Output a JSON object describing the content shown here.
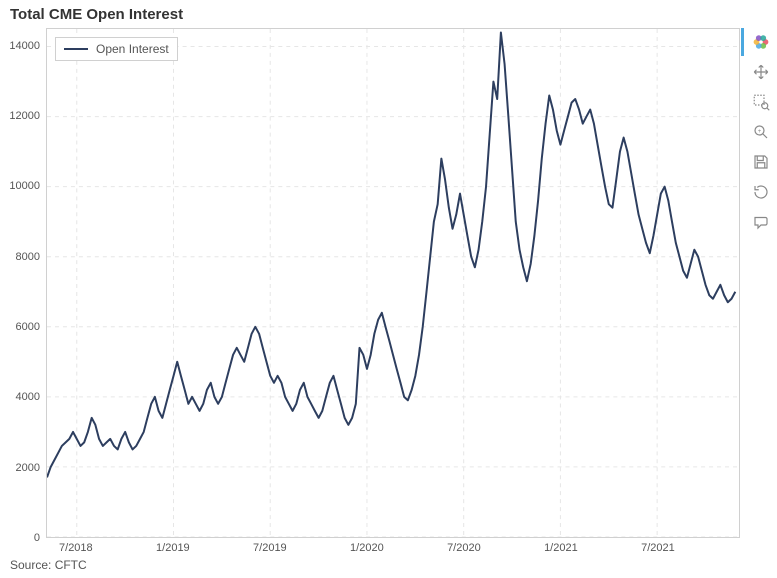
{
  "chart": {
    "type": "line",
    "title": "Total CME Open Interest",
    "source_label": "Source: CFTC",
    "legend_label": "Open Interest",
    "background_color": "#ffffff",
    "grid_color": "#e6e6e6",
    "border_color": "#d0d0d0",
    "line_color": "#2d3e5f",
    "line_width": 2,
    "title_fontsize": 15,
    "label_fontsize": 11,
    "ylim": [
      0,
      14500
    ],
    "ytick_step": 2000,
    "yticks": [
      0,
      2000,
      4000,
      6000,
      8000,
      10000,
      12000,
      14000
    ],
    "xlim": [
      0,
      186
    ],
    "xticks": [
      {
        "idx": 8,
        "label": "7/2018"
      },
      {
        "idx": 34,
        "label": "1/2019"
      },
      {
        "idx": 60,
        "label": "7/2019"
      },
      {
        "idx": 86,
        "label": "1/2020"
      },
      {
        "idx": 112,
        "label": "7/2020"
      },
      {
        "idx": 138,
        "label": "1/2021"
      },
      {
        "idx": 164,
        "label": "7/2021"
      }
    ],
    "values": [
      1700,
      2000,
      2200,
      2400,
      2600,
      2700,
      2800,
      3000,
      2800,
      2600,
      2700,
      3000,
      3400,
      3200,
      2800,
      2600,
      2700,
      2800,
      2600,
      2500,
      2800,
      3000,
      2700,
      2500,
      2600,
      2800,
      3000,
      3400,
      3800,
      4000,
      3600,
      3400,
      3800,
      4200,
      4600,
      5000,
      4600,
      4200,
      3800,
      4000,
      3800,
      3600,
      3800,
      4200,
      4400,
      4000,
      3800,
      4000,
      4400,
      4800,
      5200,
      5400,
      5200,
      5000,
      5400,
      5800,
      6000,
      5800,
      5400,
      5000,
      4600,
      4400,
      4600,
      4400,
      4000,
      3800,
      3600,
      3800,
      4200,
      4400,
      4000,
      3800,
      3600,
      3400,
      3600,
      4000,
      4400,
      4600,
      4200,
      3800,
      3400,
      3200,
      3400,
      3800,
      5400,
      5200,
      4800,
      5200,
      5800,
      6200,
      6400,
      6000,
      5600,
      5200,
      4800,
      4400,
      4000,
      3900,
      4200,
      4600,
      5200,
      6000,
      7000,
      8000,
      9000,
      9500,
      10800,
      10200,
      9400,
      8800,
      9200,
      9800,
      9200,
      8600,
      8000,
      7700,
      8200,
      9000,
      10000,
      11500,
      13000,
      12500,
      14400,
      13500,
      12000,
      10500,
      9000,
      8200,
      7700,
      7300,
      7800,
      8600,
      9600,
      10800,
      11800,
      12600,
      12200,
      11600,
      11200,
      11600,
      12000,
      12400,
      12500,
      12200,
      11800,
      12000,
      12200,
      11800,
      11200,
      10600,
      10000,
      9500,
      9400,
      10200,
      11000,
      11400,
      11000,
      10400,
      9800,
      9200,
      8800,
      8400,
      8100,
      8600,
      9200,
      9800,
      10000,
      9600,
      9000,
      8400,
      8000,
      7600,
      7400,
      7800,
      8200,
      8000,
      7600,
      7200,
      6900,
      6800,
      7000,
      7200,
      6900,
      6700,
      6800,
      7000
    ]
  },
  "toolbar": {
    "logo_colors": [
      "#e84d60",
      "#6bbd45",
      "#4aa8e0",
      "#f2b134",
      "#8250c4",
      "#26a69a"
    ],
    "active_color": "#4aa8e0",
    "icon_color": "#888888",
    "items": [
      {
        "name": "pan",
        "active": true
      },
      {
        "name": "box-zoom",
        "active": false
      },
      {
        "name": "wheel-zoom",
        "active": false
      },
      {
        "name": "save",
        "active": false
      },
      {
        "name": "reset",
        "active": false
      },
      {
        "name": "hover",
        "active": false
      }
    ]
  }
}
